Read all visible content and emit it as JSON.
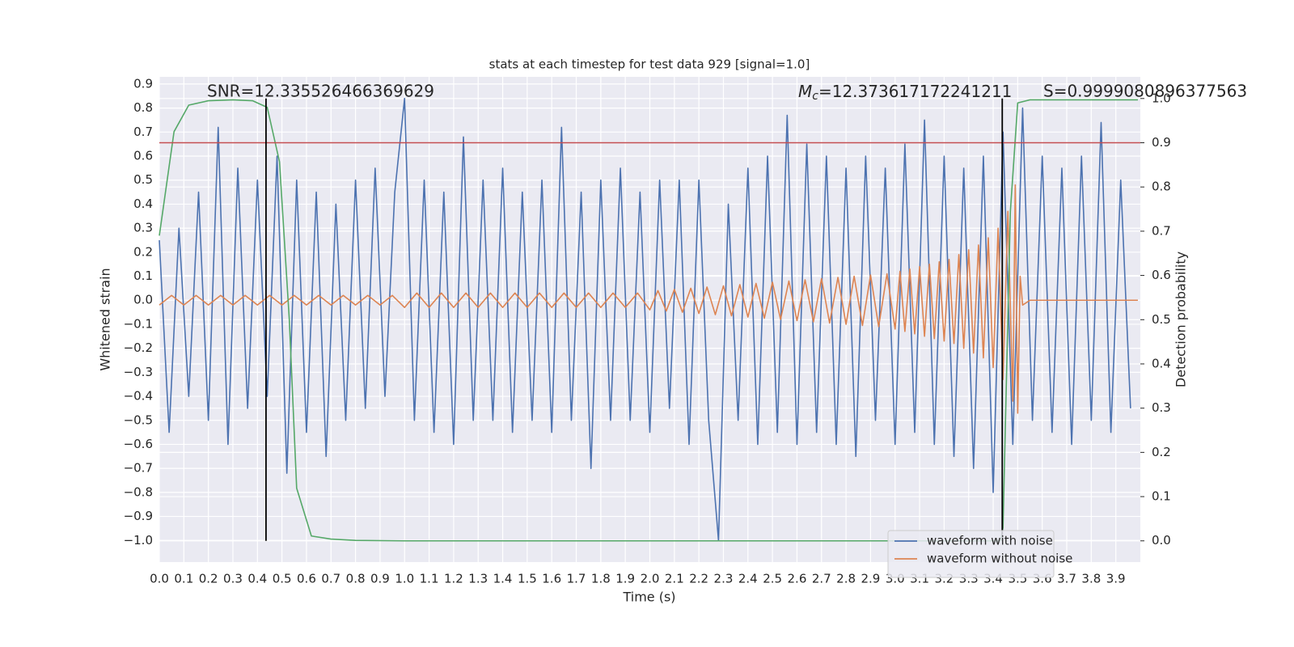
{
  "chart_data": {
    "type": "line",
    "title": "stats at each timestep for test data 929 [signal=1.0]",
    "xlabel": "Time (s)",
    "ylabel": "Whitened strain",
    "y2label": "Detection probability",
    "xlim": [
      0,
      4.0
    ],
    "ylim": [
      -1.09,
      0.93
    ],
    "y2lim": [
      -0.048,
      1.049
    ],
    "xticks": [
      {
        "value": 0,
        "label": "0.0"
      },
      0.1,
      0.2,
      0.3,
      0.4,
      0.5,
      0.6,
      0.7,
      0.8,
      0.9,
      {
        "value": 1,
        "label": "1.0"
      },
      1.1,
      1.2,
      1.3,
      1.4,
      1.5,
      1.6,
      1.7,
      1.8,
      1.9,
      {
        "value": 2,
        "label": "2.0"
      },
      2.1,
      2.2,
      2.3,
      2.4,
      2.5,
      2.6,
      2.7,
      2.8,
      2.9,
      {
        "value": 3,
        "label": "3.0"
      },
      3.1,
      3.2,
      3.3,
      3.4,
      3.5,
      3.6,
      3.7,
      3.8,
      3.9
    ],
    "yticks": [
      0.9,
      0.8,
      0.7,
      0.6,
      0.5,
      0.4,
      0.3,
      0.2,
      0.1,
      {
        "value": 0,
        "label": "0.0"
      },
      {
        "value": -0.1,
        "label": "−0.1"
      },
      {
        "value": -0.2,
        "label": "−0.2"
      },
      {
        "value": -0.3,
        "label": "−0.3"
      },
      {
        "value": -0.4,
        "label": "−0.4"
      },
      {
        "value": -0.5,
        "label": "−0.5"
      },
      {
        "value": -0.6,
        "label": "−0.6"
      },
      {
        "value": -0.7,
        "label": "−0.7"
      },
      {
        "value": -0.8,
        "label": "−0.8"
      },
      {
        "value": -0.9,
        "label": "−0.9"
      },
      {
        "value": -1,
        "label": "−1.0"
      }
    ],
    "y2ticks": [
      {
        "value": 0,
        "label": "0.0"
      },
      0.1,
      0.2,
      0.3,
      0.4,
      0.5,
      0.6,
      0.7,
      0.8,
      0.9,
      {
        "value": 1,
        "label": "1.0"
      }
    ],
    "grid": true,
    "legend": "lower right",
    "series": [
      {
        "name": "waveform with noise",
        "color": "#4c72b0",
        "x": [
          0,
          0.04,
          0.08,
          0.12,
          0.16,
          0.2,
          0.24,
          0.28,
          0.32,
          0.36,
          0.4,
          0.44,
          0.48,
          0.52,
          0.56,
          0.6,
          0.64,
          0.68,
          0.72,
          0.76,
          0.8,
          0.84,
          0.88,
          0.92,
          0.96,
          1,
          1.04,
          1.08,
          1.12,
          1.16,
          1.2,
          1.24,
          1.28,
          1.32,
          1.36,
          1.4,
          1.44,
          1.48,
          1.52,
          1.56,
          1.6,
          1.64,
          1.68,
          1.72,
          1.76,
          1.8,
          1.84,
          1.88,
          1.92,
          1.96,
          2,
          2.04,
          2.08,
          2.12,
          2.16,
          2.2,
          2.24,
          2.28,
          2.32,
          2.36,
          2.4,
          2.44,
          2.48,
          2.52,
          2.56,
          2.6,
          2.64,
          2.68,
          2.72,
          2.76,
          2.8,
          2.84,
          2.88,
          2.92,
          2.96,
          3,
          3.04,
          3.08,
          3.12,
          3.16,
          3.2,
          3.24,
          3.28,
          3.32,
          3.36,
          3.4,
          3.44,
          3.48,
          3.52,
          3.56,
          3.6,
          3.64,
          3.68,
          3.72,
          3.76,
          3.8,
          3.84,
          3.88,
          3.92,
          3.96
        ],
        "values": [
          0.25,
          -0.55,
          0.3,
          -0.4,
          0.45,
          -0.5,
          0.72,
          -0.6,
          0.55,
          -0.45,
          0.5,
          -0.4,
          0.6,
          -0.72,
          0.5,
          -0.55,
          0.45,
          -0.65,
          0.4,
          -0.5,
          0.5,
          -0.45,
          0.55,
          -0.4,
          0.45,
          0.84,
          -0.5,
          0.5,
          -0.55,
          0.45,
          -0.6,
          0.68,
          -0.5,
          0.5,
          -0.5,
          0.55,
          -0.55,
          0.45,
          -0.5,
          0.5,
          -0.55,
          0.72,
          -0.5,
          0.45,
          -0.7,
          0.5,
          -0.5,
          0.55,
          -0.5,
          0.45,
          -0.55,
          0.5,
          -0.45,
          0.5,
          -0.6,
          0.5,
          -0.5,
          -1.0,
          0.4,
          -0.5,
          0.55,
          -0.6,
          0.6,
          -0.55,
          0.77,
          -0.6,
          0.65,
          -0.55,
          0.6,
          -0.6,
          0.55,
          -0.65,
          0.6,
          -0.5,
          0.55,
          -0.6,
          0.65,
          -0.55,
          0.75,
          -0.6,
          0.6,
          -0.65,
          0.55,
          -0.7,
          0.6,
          -0.8,
          0.7,
          -0.6,
          0.8,
          -0.5,
          0.6,
          -0.55,
          0.55,
          -0.6,
          0.6,
          -0.5,
          0.74,
          -0.55,
          0.5,
          -0.45
        ]
      },
      {
        "name": "waveform without noise",
        "color": "#dd8452",
        "x": [
          0,
          0.05,
          0.1,
          0.15,
          0.2,
          0.25,
          0.3,
          0.35,
          0.4,
          0.45,
          0.5,
          0.55,
          0.6,
          0.65,
          0.7,
          0.75,
          0.8,
          0.85,
          0.9,
          0.95,
          1,
          1.05,
          1.1,
          1.15,
          1.2,
          1.25,
          1.3,
          1.35,
          1.4,
          1.45,
          1.5,
          1.55,
          1.6,
          1.65,
          1.7,
          1.75,
          1.8,
          1.85,
          1.9,
          1.95,
          2,
          2.033,
          2.067,
          2.1,
          2.133,
          2.167,
          2.2,
          2.233,
          2.267,
          2.3,
          2.333,
          2.367,
          2.4,
          2.433,
          2.467,
          2.5,
          2.533,
          2.567,
          2.6,
          2.633,
          2.667,
          2.7,
          2.733,
          2.767,
          2.8,
          2.833,
          2.867,
          2.9,
          2.933,
          2.967,
          3,
          3.02,
          3.04,
          3.06,
          3.08,
          3.1,
          3.12,
          3.14,
          3.16,
          3.18,
          3.2,
          3.22,
          3.24,
          3.26,
          3.28,
          3.3,
          3.32,
          3.34,
          3.36,
          3.38,
          3.4,
          3.42,
          3.44,
          3.46,
          3.48,
          3.49,
          3.5,
          3.51,
          3.52,
          3.55,
          3.99
        ],
        "values": [
          -0.02,
          0.02,
          -0.02,
          0.02,
          -0.02,
          0.02,
          -0.02,
          0.02,
          -0.02,
          0.02,
          -0.02,
          0.02,
          -0.02,
          0.02,
          -0.02,
          0.02,
          -0.02,
          0.02,
          -0.02,
          0.02,
          -0.03,
          0.03,
          -0.03,
          0.03,
          -0.03,
          0.03,
          -0.03,
          0.03,
          -0.03,
          0.03,
          -0.03,
          0.03,
          -0.03,
          0.03,
          -0.03,
          0.03,
          -0.03,
          0.03,
          -0.03,
          0.03,
          -0.04,
          0.04,
          -0.045,
          0.045,
          -0.05,
          0.05,
          -0.055,
          0.055,
          -0.06,
          0.06,
          -0.065,
          0.065,
          -0.07,
          0.07,
          -0.075,
          0.075,
          -0.08,
          0.08,
          -0.085,
          0.085,
          -0.09,
          0.09,
          -0.095,
          0.095,
          -0.1,
          0.1,
          -0.105,
          0.105,
          -0.11,
          0.11,
          -0.12,
          0.12,
          -0.13,
          0.13,
          -0.14,
          0.14,
          -0.15,
          0.15,
          -0.16,
          0.16,
          -0.17,
          0.17,
          -0.18,
          0.19,
          -0.2,
          0.21,
          -0.22,
          0.23,
          -0.24,
          0.26,
          -0.28,
          0.3,
          -0.33,
          0.37,
          -0.42,
          0.48,
          -0.47,
          0.1,
          -0.02,
          0,
          0
        ]
      },
      {
        "color": "#55a868",
        "axis": "y2",
        "x": [
          0,
          0.06,
          0.12,
          0.2,
          0.3,
          0.38,
          0.44,
          0.49,
          0.53,
          0.56,
          0.62,
          0.7,
          0.8,
          1.0,
          3.43,
          3.44,
          3.47,
          3.5,
          3.55,
          3.99
        ],
        "values": [
          0.69,
          0.925,
          0.985,
          0.995,
          0.997,
          0.995,
          0.98,
          0.857,
          0.5,
          0.119,
          0.011,
          0.004,
          0.001,
          0,
          0,
          0.03,
          0.744,
          0.99,
          0.997,
          0.997
        ]
      }
    ],
    "hlines": [
      {
        "y": 0.9,
        "axis": "y2",
        "color": "#c44e52"
      }
    ],
    "vlines": [
      {
        "x": 0.435,
        "ymin": 0,
        "ymax": 1,
        "axis": "y2",
        "color": "#000000"
      },
      {
        "x": 3.437,
        "ymin": 0,
        "ymax": 1,
        "axis": "y2",
        "color": "#000000"
      }
    ],
    "annotations": [
      {
        "text": "SNR=12.335526466369629"
      },
      {
        "symbol": "M",
        "subscript": "c",
        "text": "=12.373617172241211"
      },
      {
        "text": "S=0.9999080896377563"
      }
    ]
  }
}
